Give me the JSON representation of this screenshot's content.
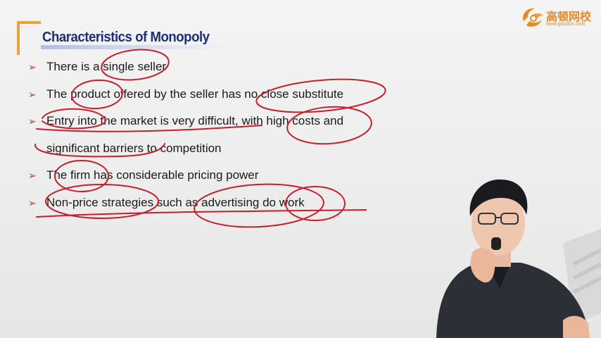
{
  "slide": {
    "title": "Characteristics of Monopoly",
    "bullets": [
      {
        "text": "There is a single seller",
        "has_arrow": true
      },
      {
        "text": "The product offered by the seller has no close substitute",
        "has_arrow": true
      },
      {
        "text": "Entry into the market is very difficult, with high costs and",
        "has_arrow": true
      },
      {
        "text": "significant barriers to competition",
        "has_arrow": false
      },
      {
        "text": "The firm has considerable pricing power",
        "has_arrow": true
      },
      {
        "text": "Non-price strategies such as advertising do work",
        "has_arrow": true
      }
    ],
    "arrow_glyph": "➢"
  },
  "logo": {
    "name": "高顿网校",
    "url": "www.gaodun.com",
    "color": "#e58a2c"
  },
  "colors": {
    "title": "#1e2f74",
    "accent": "#e9a23b",
    "annotation": "#c81e2a",
    "arrow": "#c0392b"
  }
}
